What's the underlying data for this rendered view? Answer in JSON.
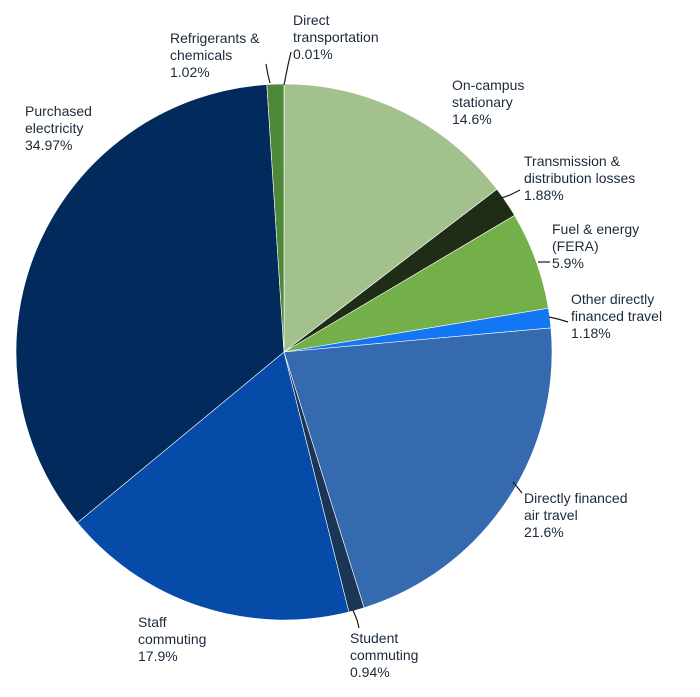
{
  "chart_data": {
    "type": "pie",
    "start_angle_deg": 0,
    "direction": "clockwise",
    "slices": [
      {
        "name": "Direct transportation",
        "display": [
          "Direct",
          "transportation",
          "0.01%"
        ],
        "value": 0.01,
        "color": "#1c2b14"
      },
      {
        "name": "On-campus stationary",
        "display": [
          "On-campus",
          "stationary",
          "14.6%"
        ],
        "value": 14.6,
        "color": "#a2c18d"
      },
      {
        "name": "Transmission & distribution losses",
        "display": [
          "Transmission &",
          "distribution losses",
          "1.88%"
        ],
        "value": 1.88,
        "color": "#1f2d17"
      },
      {
        "name": "Fuel & energy (FERA)",
        "display": [
          "Fuel & energy",
          "(FERA)",
          "5.9%"
        ],
        "value": 5.9,
        "color": "#73b04a"
      },
      {
        "name": "Other directly financed travel",
        "display": [
          "Other directly",
          "financed travel",
          "1.18%"
        ],
        "value": 1.18,
        "color": "#1377f5"
      },
      {
        "name": "Directly financed air travel",
        "display": [
          "Directly financed",
          "air travel",
          "21.6%"
        ],
        "value": 21.6,
        "color": "#356aaf"
      },
      {
        "name": "Student commuting",
        "display": [
          "Student",
          "commuting",
          "0.94%"
        ],
        "value": 0.94,
        "color": "#1b3554"
      },
      {
        "name": "Staff commuting",
        "display": [
          "Staff",
          "commuting",
          "17.9%"
        ],
        "value": 17.9,
        "color": "#064ba8"
      },
      {
        "name": "Purchased electricity",
        "display": [
          "Purchased",
          "electricity",
          "34.97%"
        ],
        "value": 34.97,
        "color": "#022a5c"
      },
      {
        "name": "Refrigerants & chemicals",
        "display": [
          "Refrigerants &",
          "chemicals",
          "1.02%"
        ],
        "value": 1.02,
        "color": "#4f8838"
      }
    ]
  }
}
